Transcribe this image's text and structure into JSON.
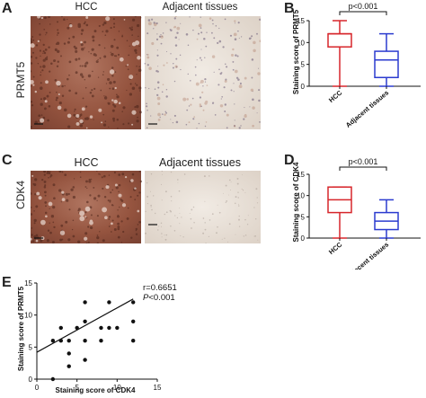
{
  "panels": {
    "A": {
      "letter": "A",
      "col_headers": [
        "HCC",
        "Adjacent tissues"
      ],
      "row_label": "PRMT5"
    },
    "C": {
      "letter": "C",
      "col_headers": [
        "HCC",
        "Adjacent tissues"
      ],
      "row_label": "CDK4"
    },
    "B": {
      "letter": "B"
    },
    "D": {
      "letter": "D"
    },
    "E": {
      "letter": "E"
    }
  },
  "colors": {
    "hcc": "#d7262b",
    "adjacent": "#2b3bcf",
    "tissue_hcc": "#9a5a47",
    "tissue_adj": "#e9e1da"
  },
  "chart_data": [
    {
      "id": "B",
      "type": "box",
      "title": "",
      "ylabel": "Staining score of PRMT5",
      "categories": [
        "HCC",
        "Adjacent tissues"
      ],
      "ylim": [
        0,
        15
      ],
      "yticks": [
        0,
        5,
        10,
        15
      ],
      "boxes": [
        {
          "name": "HCC",
          "min": 0,
          "q1": 9,
          "median": 12,
          "q3": 12,
          "max": 15
        },
        {
          "name": "Adjacent tissues",
          "min": 0,
          "q1": 2,
          "median": 6,
          "q3": 8,
          "max": 12
        }
      ],
      "annotation": "p<0.001"
    },
    {
      "id": "D",
      "type": "box",
      "title": "",
      "ylabel": "Staining score of CDK4",
      "categories": [
        "HCC",
        "Adjacent tissues"
      ],
      "ylim": [
        0,
        15
      ],
      "yticks": [
        0,
        5,
        10,
        15
      ],
      "boxes": [
        {
          "name": "HCC",
          "min": 0,
          "q1": 6,
          "median": 9,
          "q3": 12,
          "max": 12
        },
        {
          "name": "Adjacent tissues",
          "min": 0,
          "q1": 2,
          "median": 4,
          "q3": 6,
          "max": 9
        }
      ],
      "annotation": "p<0.001"
    },
    {
      "id": "E",
      "type": "scatter",
      "title": "",
      "xlabel": "Staining score of CDK4",
      "ylabel": "Staining score of PRMT5",
      "xlim": [
        0,
        15
      ],
      "ylim": [
        0,
        15
      ],
      "xticks": [
        0,
        5,
        10,
        15
      ],
      "yticks": [
        0,
        5,
        10,
        15
      ],
      "points": [
        [
          2,
          0
        ],
        [
          2,
          6
        ],
        [
          3,
          6
        ],
        [
          3,
          8
        ],
        [
          4,
          2
        ],
        [
          4,
          4
        ],
        [
          4,
          6
        ],
        [
          5,
          8
        ],
        [
          6,
          3
        ],
        [
          6,
          6
        ],
        [
          6,
          9
        ],
        [
          6,
          12
        ],
        [
          8,
          6
        ],
        [
          8,
          8
        ],
        [
          9,
          8
        ],
        [
          9,
          12
        ],
        [
          10,
          8
        ],
        [
          12,
          6
        ],
        [
          12,
          9
        ],
        [
          12,
          12
        ]
      ],
      "fit_line": {
        "x": [
          0,
          12
        ],
        "y": [
          4.2,
          12.5
        ]
      },
      "annotation_r": "r=0.6651",
      "annotation_p_letter": "P",
      "annotation_p_rest": "<0.001"
    }
  ]
}
